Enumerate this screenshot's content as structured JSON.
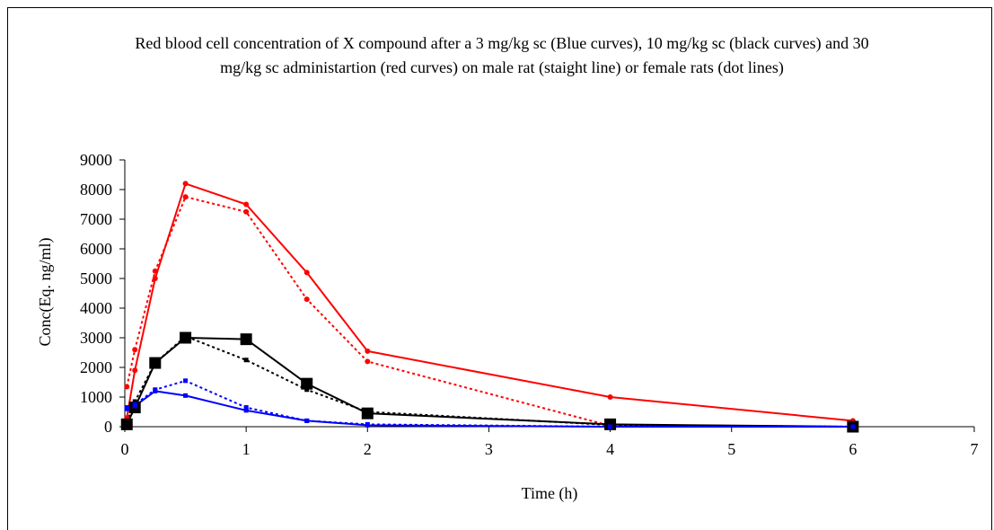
{
  "chart_data": {
    "type": "line",
    "title": "Red blood cell concentration of X compound after a 3 mg/kg sc (Blue curves), 10 mg/kg sc (black curves) and 30 mg/kg sc administartion (red curves) on male rat (staight line) or female rats (dot lines)",
    "xlabel": "Time (h)",
    "ylabel": "Conc(Eq. ng/ml)",
    "xlim": [
      0,
      7
    ],
    "ylim": [
      0,
      9000
    ],
    "xticks": [
      "0",
      "1",
      "2",
      "3",
      "4",
      "5",
      "6",
      "7"
    ],
    "yticks": [
      "0",
      "1000",
      "2000",
      "3000",
      "4000",
      "5000",
      "6000",
      "7000",
      "8000",
      "9000"
    ],
    "grid": false,
    "legend": "none",
    "series": [
      {
        "color": "#ff0000",
        "style": "solid",
        "marker": "circle",
        "x": [
          0.0167,
          0.083,
          0.25,
          0.5,
          1,
          1.5,
          2,
          4,
          6
        ],
        "y": [
          300,
          1900,
          5000,
          8200,
          7500,
          5200,
          2550,
          1000,
          200
        ]
      },
      {
        "color": "#ff0000",
        "style": "dotted",
        "marker": "circle",
        "x": [
          0.0167,
          0.083,
          0.25,
          0.5,
          1,
          1.5,
          2,
          4,
          6
        ],
        "y": [
          1350,
          2600,
          5250,
          7750,
          7250,
          4300,
          2200,
          30,
          0
        ]
      },
      {
        "color": "#000000",
        "style": "solid",
        "marker": "square",
        "x": [
          0.0167,
          0.083,
          0.25,
          0.5,
          1,
          1.5,
          2,
          4,
          6
        ],
        "y": [
          80,
          650,
          2150,
          3000,
          2950,
          1450,
          450,
          80,
          0
        ]
      },
      {
        "color": "#000000",
        "style": "dotted",
        "marker": "square",
        "x": [
          0.0167,
          0.083,
          0.25,
          0.5,
          1,
          1.5,
          2,
          4,
          6
        ],
        "y": [
          150,
          850,
          2150,
          3050,
          2250,
          1250,
          500,
          60,
          0
        ]
      },
      {
        "color": "#0000ff",
        "style": "solid",
        "marker": "square",
        "x": [
          0.0167,
          0.083,
          0.25,
          0.5,
          1,
          1.5,
          2,
          4,
          6
        ],
        "y": [
          600,
          700,
          1200,
          1050,
          550,
          200,
          50,
          0,
          0
        ]
      },
      {
        "color": "#0000ff",
        "style": "dotted",
        "marker": "square",
        "x": [
          0.0167,
          0.083,
          0.25,
          0.5,
          1,
          1.5,
          2,
          4,
          6
        ],
        "y": [
          650,
          750,
          1250,
          1550,
          650,
          200,
          80,
          0,
          0
        ]
      }
    ]
  }
}
